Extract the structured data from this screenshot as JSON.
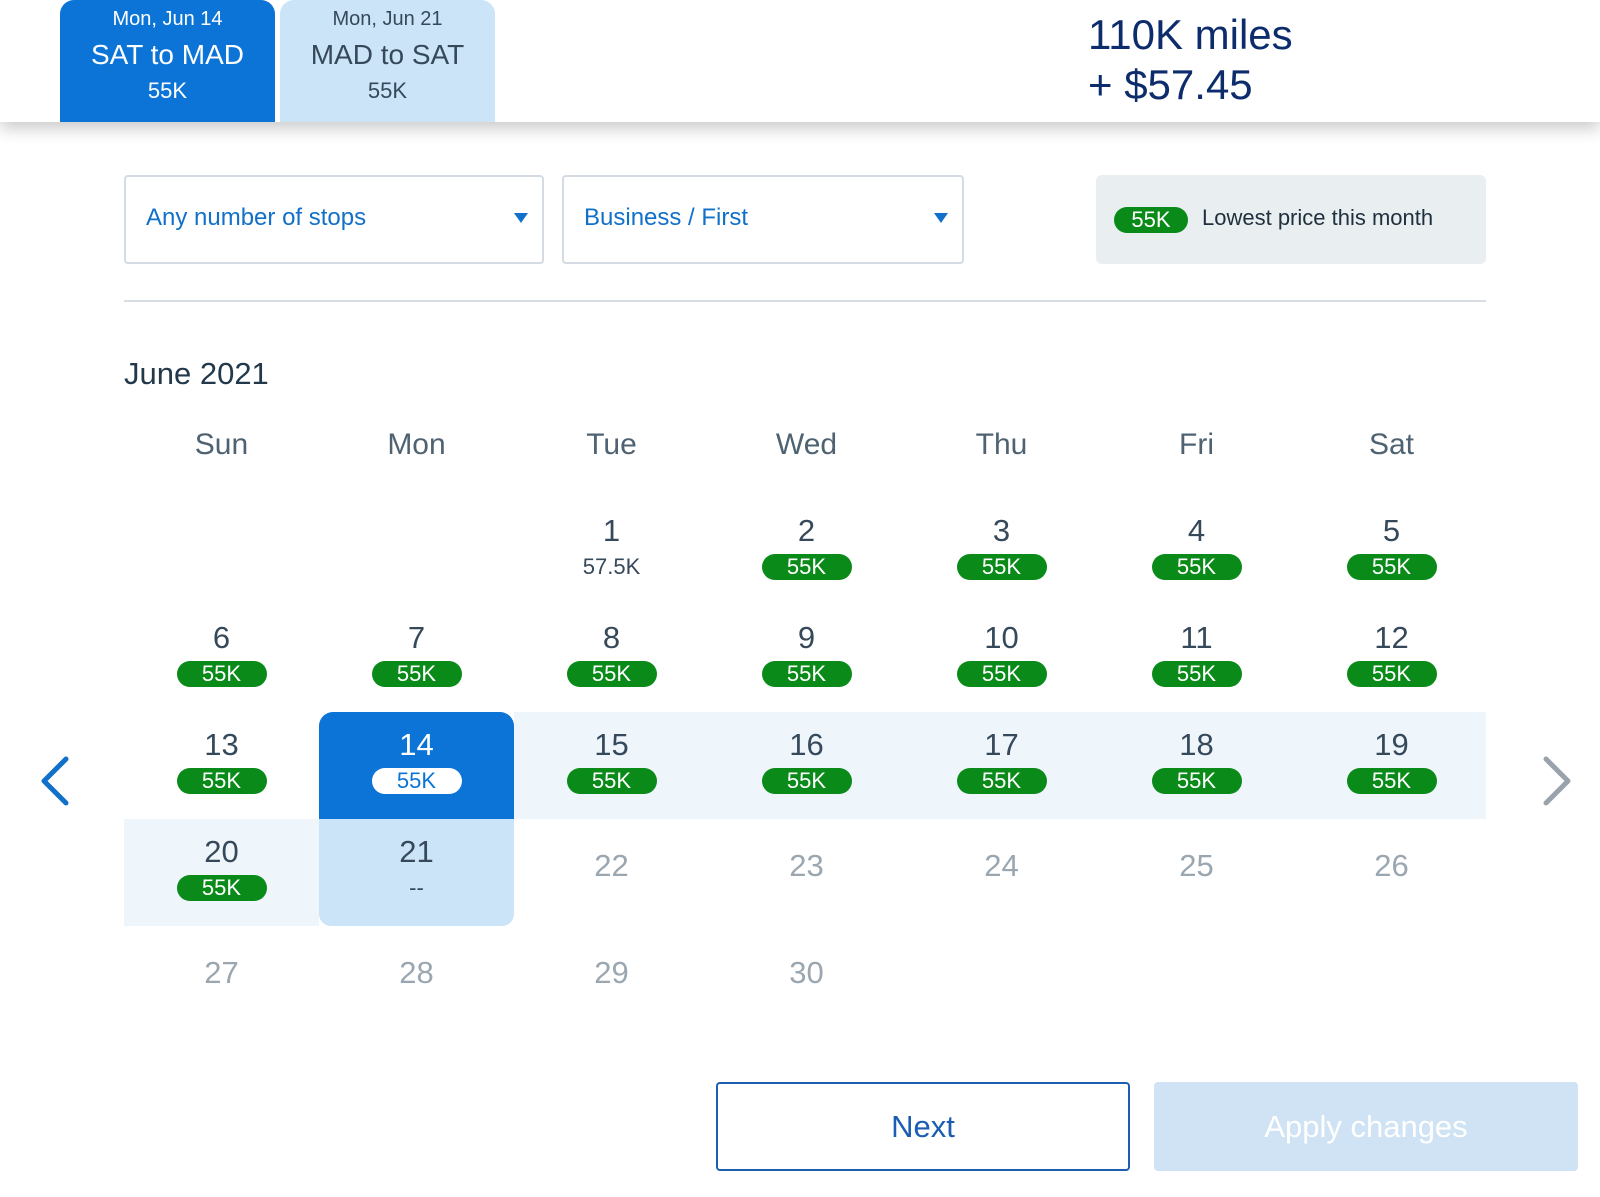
{
  "header": {
    "outbound": {
      "date": "Mon, Jun 14",
      "route": "SAT to MAD",
      "miles": "55K"
    },
    "return": {
      "date": "Mon, Jun 21",
      "route": "MAD to SAT",
      "miles": "55K"
    },
    "total_miles": "110K miles",
    "total_cash": "+ $57.45",
    "clipped_text": "• ( • • • • • • )"
  },
  "filters": {
    "stops": "Any number of stops",
    "cabin": "Business / First"
  },
  "legend": {
    "badge": "55K",
    "text": "Lowest price this month"
  },
  "calendar": {
    "month": "June 2021",
    "weekdays": [
      "Sun",
      "Mon",
      "Tue",
      "Wed",
      "Thu",
      "Fri",
      "Sat"
    ],
    "days": [
      {
        "day": "1",
        "price": "57.5K"
      },
      {
        "day": "2",
        "price": "55K"
      },
      {
        "day": "3",
        "price": "55K"
      },
      {
        "day": "4",
        "price": "55K"
      },
      {
        "day": "5",
        "price": "55K"
      },
      {
        "day": "6",
        "price": "55K"
      },
      {
        "day": "7",
        "price": "55K"
      },
      {
        "day": "8",
        "price": "55K"
      },
      {
        "day": "9",
        "price": "55K"
      },
      {
        "day": "10",
        "price": "55K"
      },
      {
        "day": "11",
        "price": "55K"
      },
      {
        "day": "12",
        "price": "55K"
      },
      {
        "day": "13",
        "price": "55K"
      },
      {
        "day": "14",
        "price": "55K"
      },
      {
        "day": "15",
        "price": "55K"
      },
      {
        "day": "16",
        "price": "55K"
      },
      {
        "day": "17",
        "price": "55K"
      },
      {
        "day": "18",
        "price": "55K"
      },
      {
        "day": "19",
        "price": "55K"
      },
      {
        "day": "20",
        "price": "55K"
      },
      {
        "day": "21",
        "price": "--"
      },
      {
        "day": "22",
        "price": ""
      },
      {
        "day": "23",
        "price": ""
      },
      {
        "day": "24",
        "price": ""
      },
      {
        "day": "25",
        "price": ""
      },
      {
        "day": "26",
        "price": ""
      },
      {
        "day": "27",
        "price": ""
      },
      {
        "day": "28",
        "price": ""
      },
      {
        "day": "29",
        "price": ""
      },
      {
        "day": "30",
        "price": ""
      }
    ],
    "selected_day": "14",
    "return_day": "21",
    "prev_icon": "chevron-left-icon",
    "next_icon": "chevron-right-icon"
  },
  "buttons": {
    "next": "Next",
    "apply": "Apply changes"
  },
  "colors": {
    "brand_blue": "#0b74d6",
    "light_blue": "#cbe4f7",
    "lowest_green": "#0a8a18",
    "navy": "#0d2c6c"
  }
}
